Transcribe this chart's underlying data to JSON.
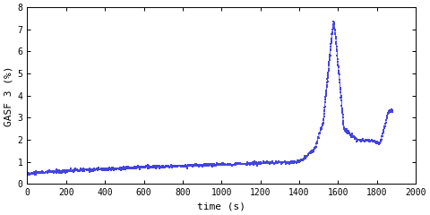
{
  "title": "",
  "xlabel": "time (s)",
  "ylabel": "GASF 3 (%)",
  "xlim": [
    0,
    2000
  ],
  "ylim": [
    0,
    8
  ],
  "xticks": [
    0,
    200,
    400,
    600,
    800,
    1000,
    1200,
    1400,
    1600,
    1800,
    2000
  ],
  "yticks": [
    0,
    1,
    2,
    3,
    4,
    5,
    6,
    7,
    8
  ],
  "line_color": "#4444dd",
  "marker": "s",
  "markersize": 1.8,
  "linewidth": 0.6,
  "background_color": "#ffffff",
  "font_family": "monospace",
  "tick_fontsize": 7,
  "label_fontsize": 8
}
